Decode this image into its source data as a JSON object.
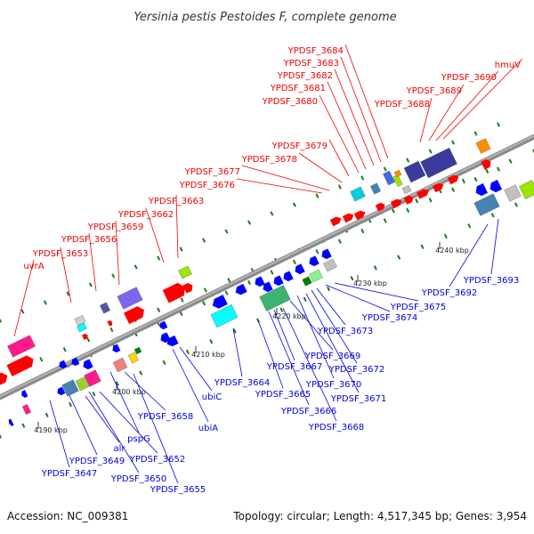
{
  "title": "Yersinia pestis Pestoides F, complete genome",
  "footer": {
    "accession": "Accession: NC_009381",
    "info": "Topology: circular; Length: 4,517,345 bp; Genes: 3,954"
  },
  "scale_ticks": [
    "4190 kbp",
    "4200 kbp",
    "4210 kbp",
    "4220 kbp",
    "4230 kbp",
    "4240 kbp"
  ],
  "labels_forward": [
    "uvrA",
    "YPDSF_3653",
    "YPDSF_3656",
    "YPDSF_3659",
    "YPDSF_3662",
    "YPDSF_3663",
    "YPDSF_3676",
    "YPDSF_3677",
    "YPDSF_3678",
    "YPDSF_3679",
    "YPDSF_3680",
    "YPDSF_3681",
    "YPDSF_3682",
    "YPDSF_3683",
    "YPDSF_3684",
    "YPDSF_3688",
    "YPDSF_3689",
    "YPDSF_3690",
    "hmuV"
  ],
  "labels_reverse": [
    "YPDSF_3647",
    "YPDSF_3649",
    "alr",
    "YPDSF_3650",
    "YPDSF_3652",
    "pspG",
    "YPDSF_3655",
    "YPDSF_3658",
    "ubiA",
    "ubiC",
    "YPDSF_3664",
    "YPDSF_3665",
    "YPDSF_3666",
    "YPDSF_3667",
    "YPDSF_3668",
    "YPDSF_3669",
    "YPDSF_3670",
    "YPDSF_3671",
    "YPDSF_3672",
    "YPDSF_3673",
    "YPDSF_3674",
    "YPDSF_3675",
    "YPDSF_3692",
    "YPDSF_3693"
  ],
  "colors": {
    "forward": "#ff0000",
    "reverse": "#0000ff",
    "backbone": "#777777",
    "tick_marks": "#1a7a1a"
  }
}
